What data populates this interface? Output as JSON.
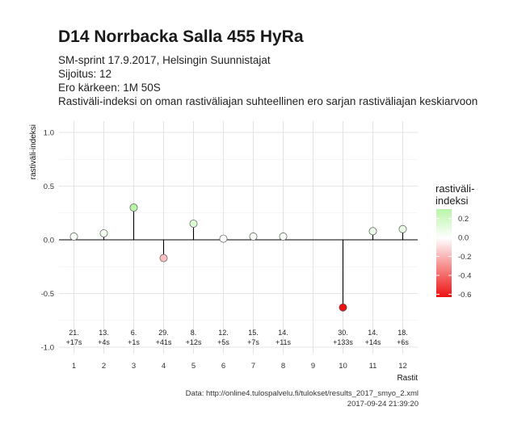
{
  "header": {
    "title": "D14 Norrbacka Salla 455 HyRa",
    "subtitle_lines": [
      "SM-sprint 17.9.2017, Helsingin Suunnistajat",
      "Sijoitus: 12",
      "Ero kärkeen: 1M 50S",
      "Rastiväli-indeksi on oman rastiväliajan suhteellinen ero sarjan rastiväliajan keskiarvoon"
    ]
  },
  "legend": {
    "title_line1": "rastiväli-",
    "title_line2": "indeksi",
    "ticks": [
      "0.2",
      "0.0",
      "-0.2",
      "-0.4",
      "-0.6"
    ],
    "colors": {
      "high": "#b8f5a8",
      "mid": "#ffffff",
      "low": "#ee1111"
    }
  },
  "caption": {
    "source": "Data: http://online4.tulospalvelu.fi/tulokset/results_2017_smyo_2.xml",
    "timestamp": "2017-09-24 21:39:20"
  },
  "chart_data": {
    "type": "lollipop",
    "xlabel": "Rastit",
    "ylabel": "rastiväli-indeksi",
    "ylim": [
      -1.0,
      1.0
    ],
    "xlim": [
      1,
      12
    ],
    "yticks": [
      "1.0",
      "0.5",
      "0.0",
      "-0.5",
      "-1.0"
    ],
    "xticks": [
      "1",
      "2",
      "3",
      "4",
      "5",
      "6",
      "7",
      "8",
      "9",
      "10",
      "11",
      "12"
    ],
    "grid": true,
    "legend_position": "right",
    "points": [
      {
        "x": 1,
        "y": 0.03,
        "rank": "21.",
        "diff": "+17s"
      },
      {
        "x": 2,
        "y": 0.06,
        "rank": "13.",
        "diff": "+4s"
      },
      {
        "x": 3,
        "y": 0.3,
        "rank": "6.",
        "diff": "+1s"
      },
      {
        "x": 4,
        "y": -0.17,
        "rank": "29.",
        "diff": "+41s"
      },
      {
        "x": 5,
        "y": 0.15,
        "rank": "8.",
        "diff": "+12s"
      },
      {
        "x": 6,
        "y": 0.01,
        "rank": "12.",
        "diff": "+5s"
      },
      {
        "x": 7,
        "y": 0.03,
        "rank": "15.",
        "diff": "+7s"
      },
      {
        "x": 8,
        "y": 0.03,
        "rank": "14.",
        "diff": "+11s"
      },
      {
        "x": 10,
        "y": -0.63,
        "rank": "30.",
        "diff": "+133s"
      },
      {
        "x": 11,
        "y": 0.08,
        "rank": "14.",
        "diff": "+14s"
      },
      {
        "x": 12,
        "y": 0.1,
        "rank": "18.",
        "diff": "+6s"
      }
    ]
  }
}
